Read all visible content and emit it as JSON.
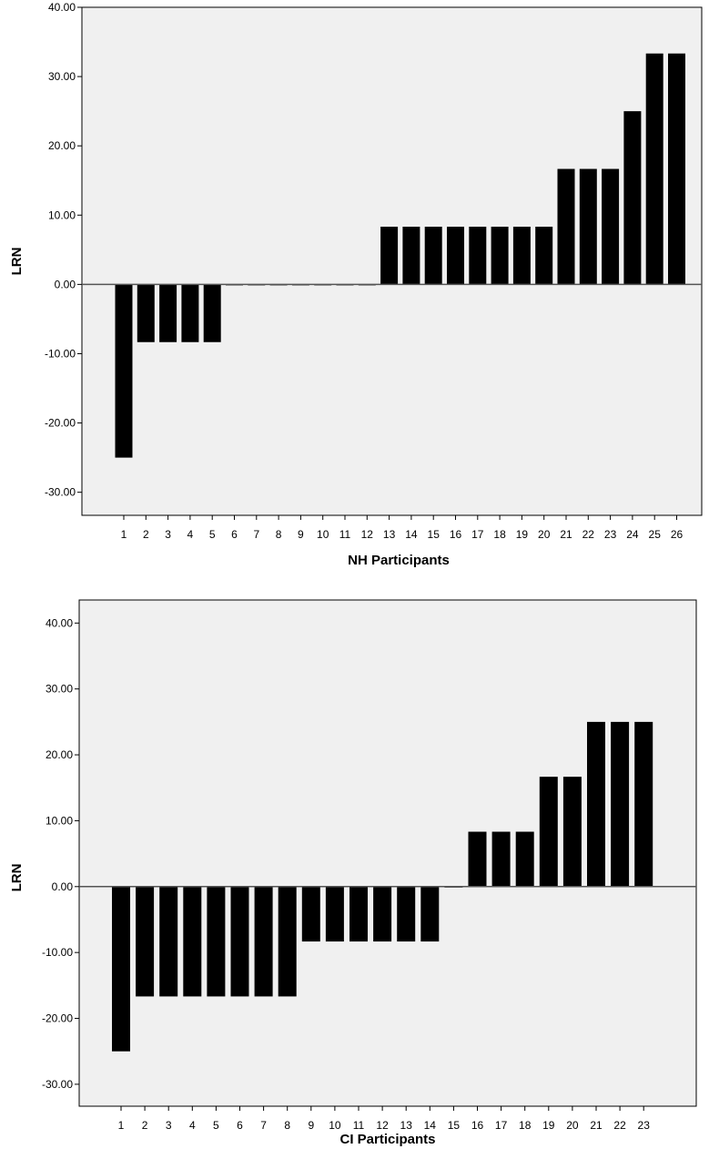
{
  "chart_data": [
    {
      "type": "bar",
      "title": "",
      "xlabel": "NH Participants",
      "ylabel": "LRN",
      "ylim": [
        -33.33,
        40
      ],
      "yticks": [
        "40.00",
        "30.00",
        "20.00",
        "10.00",
        "0.00",
        "-10.00",
        "-20.00",
        "-30.00"
      ],
      "ytick_values": [
        40,
        30,
        20,
        10,
        0,
        -10,
        -20,
        -30
      ],
      "categories": [
        "1",
        "2",
        "3",
        "4",
        "5",
        "6",
        "7",
        "8",
        "9",
        "10",
        "11",
        "12",
        "13",
        "14",
        "15",
        "16",
        "17",
        "18",
        "19",
        "20",
        "21",
        "22",
        "23",
        "24",
        "25",
        "26"
      ],
      "values": [
        -25,
        -8.33,
        -8.33,
        -8.33,
        -8.33,
        0,
        0,
        0,
        0,
        0,
        0,
        0,
        8.33,
        8.33,
        8.33,
        8.33,
        8.33,
        8.33,
        8.33,
        8.33,
        16.67,
        16.67,
        16.67,
        25,
        33.33,
        33.33
      ],
      "grid": false,
      "colors": {
        "bar": "#000000",
        "plot_bg": "#f0f0f0"
      }
    },
    {
      "type": "bar",
      "title": "",
      "xlabel": "CI Participants",
      "ylabel": "LRN",
      "ylim": [
        -33.33,
        43.5
      ],
      "yticks": [
        "40.00",
        "30.00",
        "20.00",
        "10.00",
        "0.00",
        "-10.00",
        "-20.00",
        "-30.00"
      ],
      "ytick_values": [
        40,
        30,
        20,
        10,
        0,
        -10,
        -20,
        -30
      ],
      "categories": [
        "1",
        "2",
        "3",
        "4",
        "5",
        "6",
        "7",
        "8",
        "9",
        "10",
        "11",
        "12",
        "13",
        "14",
        "15",
        "16",
        "17",
        "18",
        "19",
        "20",
        "21",
        "22",
        "23"
      ],
      "values": [
        -25,
        -16.67,
        -16.67,
        -16.67,
        -16.67,
        -16.67,
        -16.67,
        -16.67,
        -8.33,
        -8.33,
        -8.33,
        -8.33,
        -8.33,
        -8.33,
        0,
        8.33,
        8.33,
        8.33,
        16.67,
        16.67,
        25,
        25,
        25
      ],
      "grid": false,
      "colors": {
        "bar": "#000000",
        "plot_bg": "#f0f0f0"
      }
    }
  ]
}
